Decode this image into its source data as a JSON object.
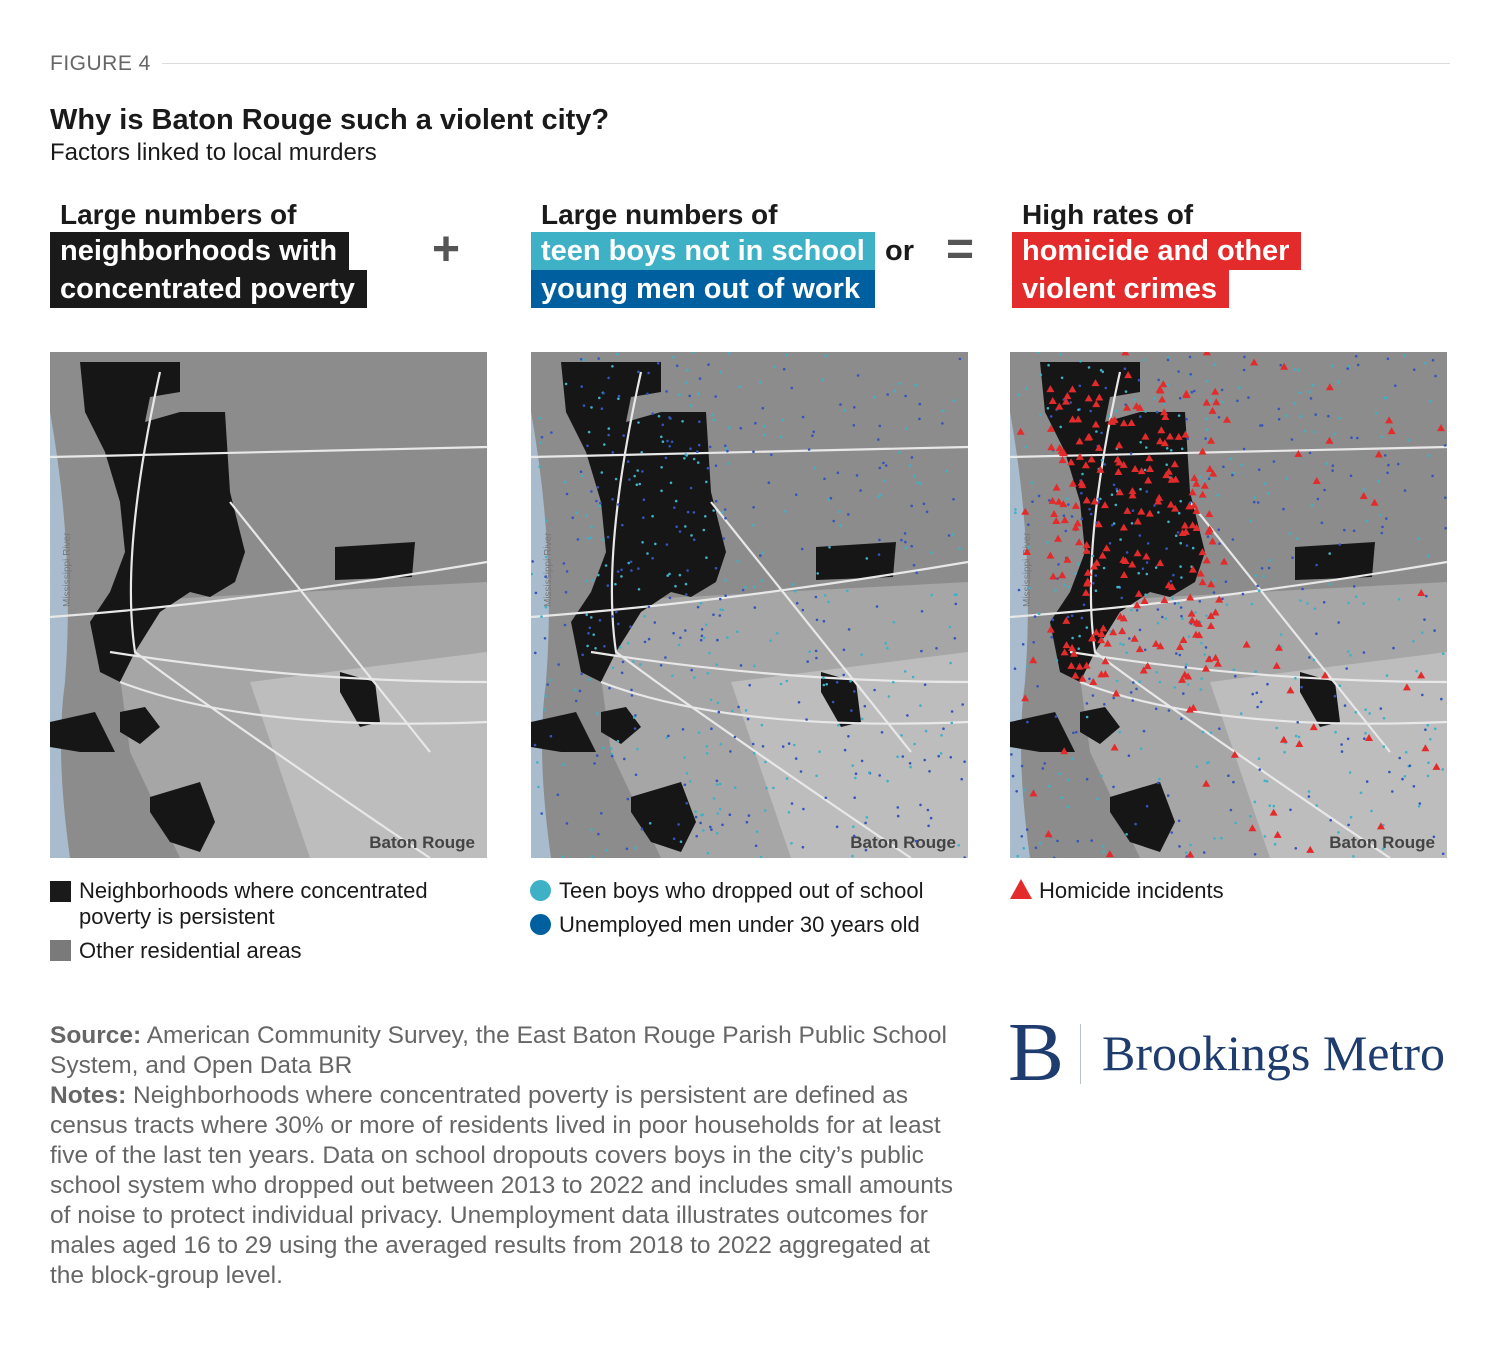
{
  "figure_label": "FIGURE 4",
  "title": "Why is Baton Rouge such a violent city?",
  "subtitle": "Factors linked to local murders",
  "panels": [
    {
      "heading": "Large numbers of",
      "tags": [
        "neighborhoods with",
        "concentrated poverty"
      ],
      "tag_colors": [
        "#1a1a1a",
        "#1a1a1a"
      ],
      "legend": [
        {
          "icon": "black-square",
          "label": "Neighborhoods where concentrated poverty is persistent",
          "color": "#1a1a1a"
        },
        {
          "icon": "gray-square",
          "label": "Other residential areas",
          "color": "#7a7a7a"
        }
      ]
    },
    {
      "heading": "Large numbers of",
      "tags": [
        "teen boys not in school",
        "young men out of work"
      ],
      "tag_colors": [
        "#3fb1c6",
        "#005f9e"
      ],
      "connector": "or",
      "legend": [
        {
          "icon": "teal-circle",
          "label": "Teen boys who dropped out of school",
          "color": "#3fb1c6"
        },
        {
          "icon": "blue-circle",
          "label": "Unemployed men under 30 years old",
          "color": "#005f9e"
        }
      ]
    },
    {
      "heading": "High rates of",
      "tags": [
        "homicide and other",
        "violent crimes"
      ],
      "tag_colors": [
        "#e32b2b",
        "#e32b2b"
      ],
      "legend": [
        {
          "icon": "red-triangle",
          "label": "Homicide incidents",
          "color": "#e32b2b"
        }
      ]
    }
  ],
  "operators": {
    "plus": "+",
    "equals": "="
  },
  "map": {
    "city_label": "Baton Rouge",
    "river_label": "Mississippi River"
  },
  "source_label": "Source:",
  "source_text": "American Community Survey, the East Baton Rouge Parish Public School System, and Open Data BR",
  "notes_label": "Notes:",
  "notes_text": "Neighborhoods where concentrated poverty is persistent are defined as census tracts where 30% or more of residents lived in poor households for at least five of the last ten years. Data on school dropouts covers boys in the city’s public school system who dropped out between 2013 to 2022 and includes small amounts of noise to protect individual privacy. Unemployment data illustrates outcomes for males aged 16 to 29 using the averaged results from 2018 to 2022 aggregated at the block-group level.",
  "logo": {
    "mark": "B",
    "text": "Brookings Metro",
    "color": "#1f3c6e"
  }
}
